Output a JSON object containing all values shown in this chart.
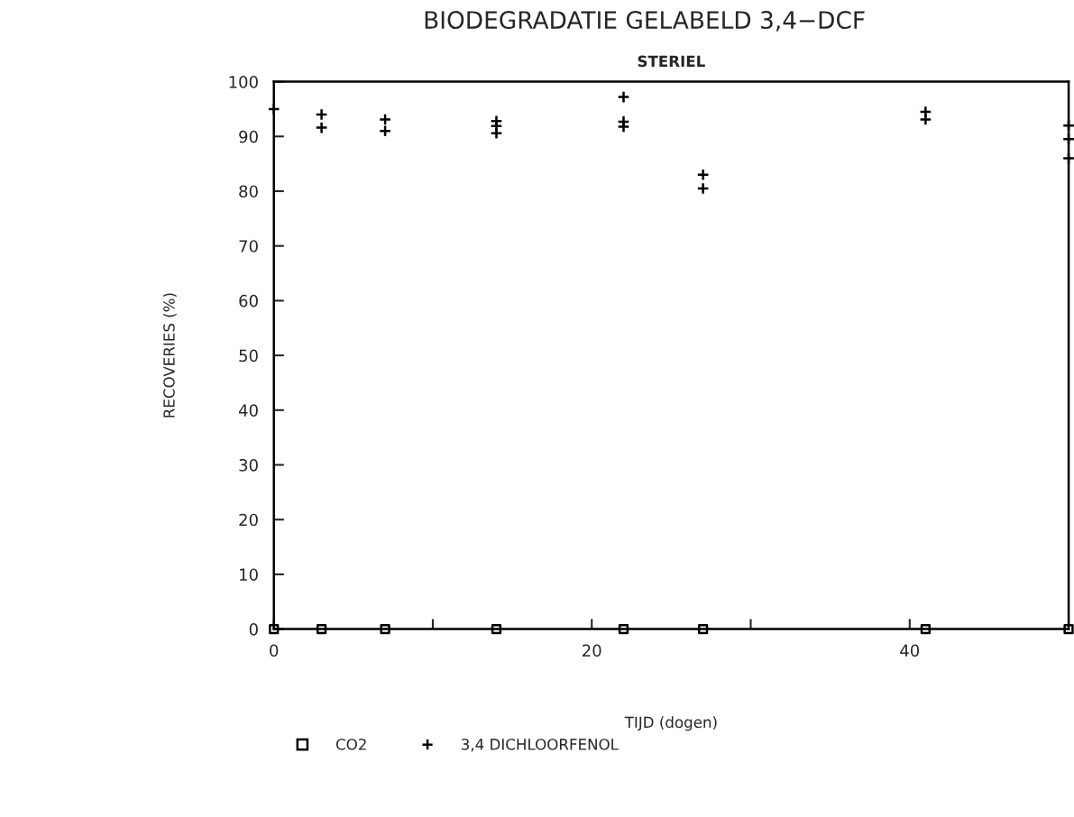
{
  "chart_data": {
    "type": "scatter",
    "title": "BIODEGRADATIE GELABELD 3,4−DCF",
    "subtitle": "STERIEL",
    "xlabel": "TIJD (dogen)",
    "ylabel": "RECOVERIES (%)",
    "xlim": [
      0,
      50
    ],
    "xticks": [
      0,
      {
        "value": 10,
        "label": null
      },
      20,
      {
        "value": 30,
        "label": null
      },
      40,
      {
        "value": 50,
        "label": null
      }
    ],
    "ylim": [
      0,
      100
    ],
    "yticks": [
      0,
      10,
      20,
      30,
      40,
      50,
      60,
      70,
      80,
      90,
      100
    ],
    "grid": false,
    "legend": "bottom",
    "series": [
      {
        "name": "CO2",
        "color": "#000000",
        "marker": "square",
        "x": [
          0,
          3,
          7,
          14,
          22,
          27,
          41,
          50
        ],
        "values": [
          0,
          0,
          0,
          0,
          0,
          0,
          0,
          0
        ]
      },
      {
        "name": "3,4 DICHLOORFENOL",
        "color": "#000000",
        "marker": "cross",
        "x": [
          0,
          3,
          3,
          7,
          7,
          14,
          14,
          14,
          22,
          22,
          22,
          27,
          27,
          41,
          41,
          50,
          50,
          50
        ],
        "values": [
          95,
          94,
          91.6,
          93.1,
          91,
          92.8,
          91.9,
          90.6,
          97.2,
          92.7,
          91.8,
          83,
          80.5,
          94.5,
          93.1,
          92,
          89.5,
          86
        ]
      }
    ]
  }
}
